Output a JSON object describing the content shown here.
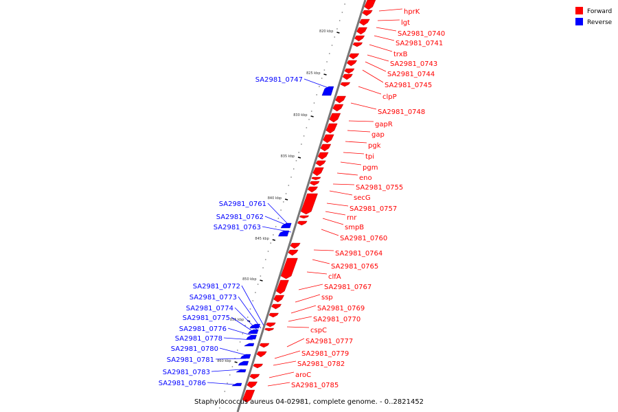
{
  "caption": "Staphylococcus aureus 04-02981, complete genome. - 0..2821452",
  "legend": {
    "forward": {
      "label": "Forward",
      "color": "#ff0000"
    },
    "reverse": {
      "label": "Reverse",
      "color": "#0000ff"
    }
  },
  "ticks": [
    "820 kbp",
    "825 kbp",
    "830 kbp",
    "835 kbp",
    "840 kbp",
    "845 kbp",
    "850 kbp",
    "855 kbp",
    "860 kbp"
  ],
  "forward_genes": [
    "hprK",
    "lgt",
    "SA2981_0740",
    "SA2981_0741",
    "trxB",
    "SA2981_0743",
    "SA2981_0744",
    "SA2981_0745",
    "clpP",
    "SA2981_0748",
    "gapR",
    "gap",
    "pgk",
    "tpi",
    "pgm",
    "eno",
    "SA2981_0755",
    "secG",
    "SA2981_0757",
    "rnr",
    "smpB",
    "SA2981_0760",
    "SA2981_0764",
    "SA2981_0765",
    "clfA",
    "SA2981_0767",
    "ssp",
    "SA2981_0769",
    "SA2981_0770",
    "cspC",
    "SA2981_0777",
    "SA2981_0779",
    "SA2981_0782",
    "aroC",
    "SA2981_0785"
  ],
  "reverse_genes": [
    "SA2981_0747",
    "SA2981_0761",
    "SA2981_0762",
    "SA2981_0763",
    "SA2981_0772",
    "SA2981_0773",
    "SA2981_0774",
    "SA2981_0775",
    "SA2981_0776",
    "SA2981_0778",
    "SA2981_0780",
    "SA2981_0781",
    "SA2981_0783",
    "SA2981_0786"
  ]
}
